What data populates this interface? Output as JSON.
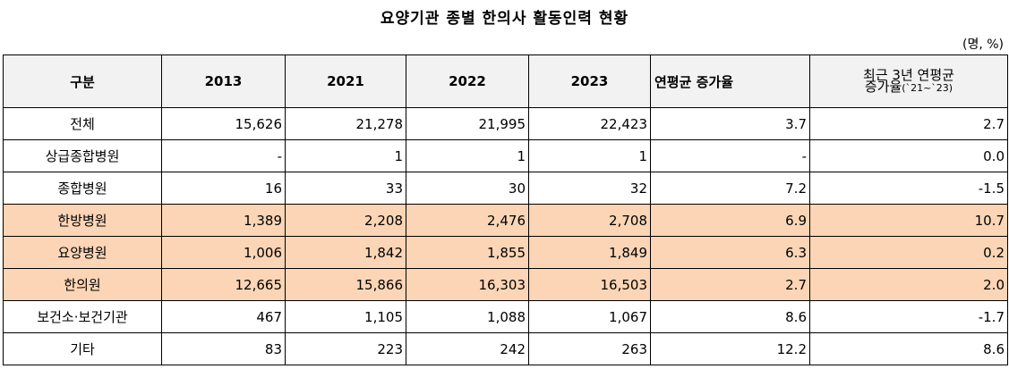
{
  "title": "요양기관 종별 한의사 활동인력 현황",
  "unit": "(명, %)",
  "columns": {
    "category": "구분",
    "y2013": "2013",
    "y2021": "2021",
    "y2022": "2022",
    "y2023": "2023",
    "avg": "연평균 증가율",
    "recent_line1": "최근 3년 연평균",
    "recent_line2": "증가율",
    "recent_note": "(`21~`23)"
  },
  "highlight_color": "#fbd5b5",
  "rows": [
    {
      "category": "전체",
      "y2013": "15,626",
      "y2021": "21,278",
      "y2022": "21,995",
      "y2023": "22,423",
      "avg": "3.7",
      "recent": "2.7",
      "highlight": false
    },
    {
      "category": "상급종합병원",
      "y2013": "-",
      "y2021": "1",
      "y2022": "1",
      "y2023": "1",
      "avg": "-",
      "recent": "0.0",
      "highlight": false
    },
    {
      "category": "종합병원",
      "y2013": "16",
      "y2021": "33",
      "y2022": "30",
      "y2023": "32",
      "avg": "7.2",
      "recent": "-1.5",
      "highlight": false
    },
    {
      "category": "한방병원",
      "y2013": "1,389",
      "y2021": "2,208",
      "y2022": "2,476",
      "y2023": "2,708",
      "avg": "6.9",
      "recent": "10.7",
      "highlight": true
    },
    {
      "category": "요양병원",
      "y2013": "1,006",
      "y2021": "1,842",
      "y2022": "1,855",
      "y2023": "1,849",
      "avg": "6.3",
      "recent": "0.2",
      "highlight": true
    },
    {
      "category": "한의원",
      "y2013": "12,665",
      "y2021": "15,866",
      "y2022": "16,303",
      "y2023": "16,503",
      "avg": "2.7",
      "recent": "2.0",
      "highlight": true
    },
    {
      "category": "보건소·보건기관",
      "y2013": "467",
      "y2021": "1,105",
      "y2022": "1,088",
      "y2023": "1,067",
      "avg": "8.6",
      "recent": "-1.7",
      "highlight": false
    },
    {
      "category": "기타",
      "y2013": "83",
      "y2021": "223",
      "y2022": "242",
      "y2023": "263",
      "avg": "12.2",
      "recent": "8.6",
      "highlight": false
    }
  ]
}
